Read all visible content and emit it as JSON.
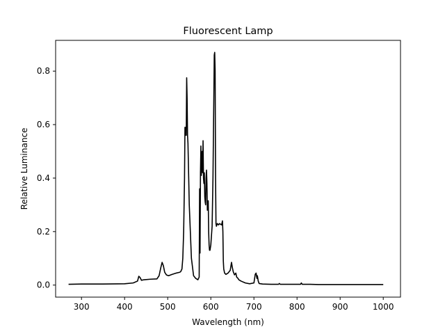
{
  "chart_data": {
    "type": "line",
    "title": "Fluorescent Lamp",
    "xlabel": "Wavelength (nm)",
    "ylabel": "Relative Luminance",
    "xlim": [
      240,
      1040
    ],
    "ylim": [
      -0.045,
      0.915
    ],
    "xticks": [
      300,
      400,
      500,
      600,
      700,
      800,
      900,
      1000
    ],
    "yticks": [
      0.0,
      0.2,
      0.4,
      0.6,
      0.8
    ],
    "ytick_labels": [
      "0.0",
      "0.2",
      "0.4",
      "0.6",
      "0.8"
    ],
    "grid": false,
    "line_color": "#000000",
    "series": [
      {
        "x": [
          270,
          300,
          350,
          400,
          420,
          430,
          433,
          436,
          439,
          445,
          460,
          475,
          480,
          484,
          487,
          490,
          493,
          497,
          502,
          510,
          520,
          528,
          530,
          533,
          535,
          537,
          539,
          540,
          541,
          542,
          543,
          544,
          545,
          546,
          547,
          550,
          555,
          560,
          565,
          570,
          573,
          574,
          575,
          576,
          577,
          578,
          579,
          580,
          581,
          582,
          583,
          584,
          585,
          586,
          587,
          588,
          589,
          590,
          591,
          592,
          593,
          594,
          595,
          596,
          597,
          598,
          600,
          603,
          605,
          607,
          608,
          609,
          610,
          611,
          612,
          613,
          615,
          618,
          620,
          625,
          627,
          628,
          629,
          630,
          632,
          635,
          640,
          645,
          648,
          650,
          652,
          655,
          658,
          660,
          663,
          665,
          670,
          680,
          690,
          700,
          703,
          705,
          707,
          708,
          710,
          712,
          720,
          740,
          757,
          759,
          761,
          780,
          800,
          808,
          810,
          812,
          830,
          850,
          900,
          950,
          1000
        ],
        "y": [
          0.003,
          0.004,
          0.004,
          0.005,
          0.008,
          0.015,
          0.033,
          0.028,
          0.018,
          0.02,
          0.022,
          0.023,
          0.035,
          0.065,
          0.085,
          0.072,
          0.048,
          0.038,
          0.035,
          0.04,
          0.045,
          0.048,
          0.05,
          0.06,
          0.1,
          0.2,
          0.4,
          0.59,
          0.56,
          0.59,
          0.56,
          0.775,
          0.7,
          0.56,
          0.53,
          0.3,
          0.1,
          0.035,
          0.025,
          0.02,
          0.03,
          0.36,
          0.12,
          0.42,
          0.52,
          0.41,
          0.48,
          0.5,
          0.42,
          0.54,
          0.4,
          0.38,
          0.42,
          0.33,
          0.31,
          0.3,
          0.4,
          0.43,
          0.38,
          0.28,
          0.31,
          0.315,
          0.2,
          0.15,
          0.13,
          0.13,
          0.15,
          0.22,
          0.4,
          0.7,
          0.86,
          0.87,
          0.8,
          0.4,
          0.23,
          0.22,
          0.23,
          0.225,
          0.23,
          0.225,
          0.24,
          0.2,
          0.09,
          0.06,
          0.045,
          0.04,
          0.045,
          0.055,
          0.085,
          0.065,
          0.05,
          0.038,
          0.045,
          0.03,
          0.025,
          0.02,
          0.015,
          0.008,
          0.005,
          0.008,
          0.04,
          0.045,
          0.025,
          0.035,
          0.015,
          0.006,
          0.004,
          0.003,
          0.003,
          0.006,
          0.003,
          0.003,
          0.003,
          0.003,
          0.008,
          0.003,
          0.003,
          0.002,
          0.002,
          0.002,
          0.002
        ]
      }
    ]
  }
}
